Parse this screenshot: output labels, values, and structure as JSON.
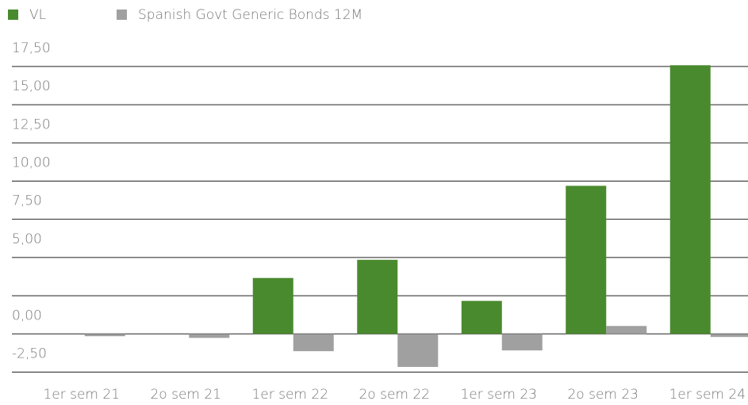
{
  "chart_data": {
    "type": "bar",
    "categories": [
      "1er sem 21",
      "2o sem 21",
      "1er sem 22",
      "2o sem 22",
      "1er sem 23",
      "2o sem 23",
      "1er sem 24"
    ],
    "series": [
      {
        "name": "VL",
        "color": "#4a8a2e",
        "values": [
          0,
          0,
          3.66,
          4.85,
          2.16,
          9.69,
          17.58
        ]
      },
      {
        "name": "Spanish Govt Generic Bonds 12M",
        "color": "#a0a0a0",
        "values": [
          -0.15,
          -0.26,
          -1.13,
          -2.16,
          -1.08,
          0.52,
          -0.2
        ]
      }
    ],
    "ylim": [
      -2.37,
      17.7
    ],
    "yticks": [
      {
        "value": -2.5,
        "label": "-2,50"
      },
      {
        "value": 0,
        "label": "0,00"
      },
      {
        "value": 5,
        "label": "5,00"
      },
      {
        "value": 7.5,
        "label": "7,50"
      },
      {
        "value": 10,
        "label": "10,00"
      },
      {
        "value": 12.5,
        "label": "12,50"
      },
      {
        "value": 15,
        "label": "15,00"
      },
      {
        "value": 17.5,
        "label": "17,50"
      }
    ],
    "ygrid": [
      -2.5,
      0,
      2.5,
      5,
      7.5,
      10,
      12.5,
      15,
      17.5
    ],
    "grid": true,
    "legend": "top-left"
  }
}
